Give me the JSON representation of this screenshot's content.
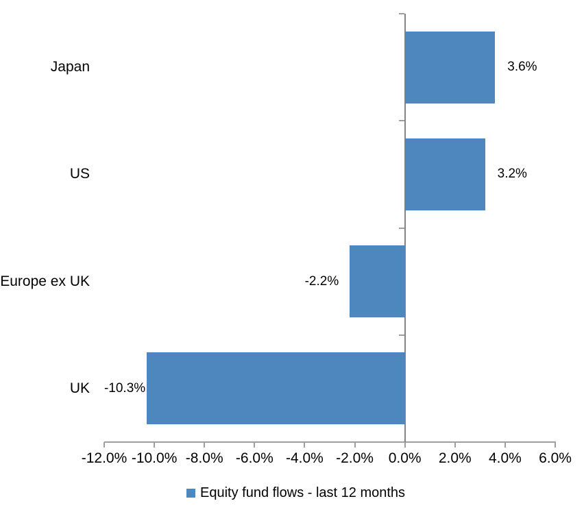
{
  "chart_data": {
    "type": "bar",
    "orientation": "horizontal",
    "title": "",
    "categories": [
      "Japan",
      "US",
      "Europe ex UK",
      "UK"
    ],
    "series": [
      {
        "name": "Equity fund flows - last 12 months",
        "values": [
          3.6,
          3.2,
          -2.2,
          -10.3
        ],
        "data_labels": [
          "3.6%",
          "3.2%",
          "-2.2%",
          "-10.3%"
        ]
      }
    ],
    "xlim": [
      -12,
      6
    ],
    "x_tick_values": [
      -12,
      -10,
      -8,
      -6,
      -4,
      -2,
      0,
      2,
      4,
      6
    ],
    "x_tick_labels": [
      "-12.0%",
      "-10.0%",
      "-8.0%",
      "-6.0%",
      "-4.0%",
      "-2.0%",
      "0.0%",
      "2.0%",
      "4.0%",
      "6.0%"
    ],
    "grid": "off",
    "legend": {
      "position": "bottom",
      "label": "Equity fund flows - last 12 months"
    },
    "colors": {
      "bar": "#4E87BD",
      "value_axis_line": "#848484",
      "category_axis_line": "#9E9E9E",
      "tick_mark": "#9E9E9E",
      "text": "#000000",
      "background": "#FFFFFF"
    }
  }
}
